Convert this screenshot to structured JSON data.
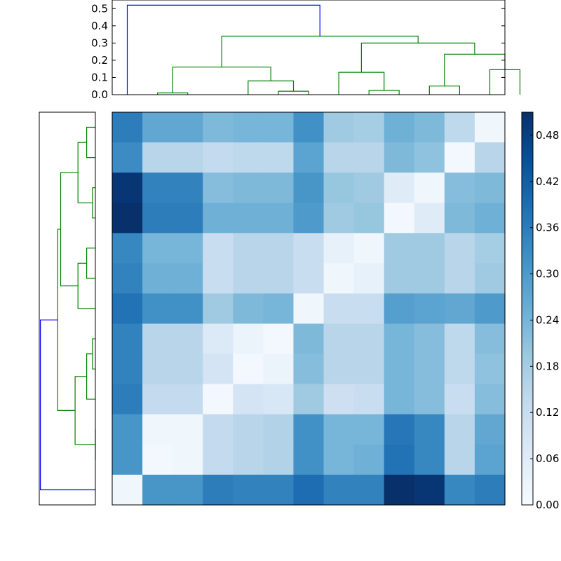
{
  "chart_data": [
    {
      "type": "dendrogram",
      "orientation": "top",
      "ylim": [
        0,
        0.55
      ],
      "yticks": [
        "0.0",
        "0.1",
        "0.2",
        "0.3",
        "0.4",
        "0.5"
      ],
      "colors": {
        "link": "#008000",
        "root": "#0000ff"
      },
      "links": [
        {
          "x": [
            1,
            2
          ],
          "left_h": 0.0,
          "right_h": 0.0,
          "h": 0.01
        },
        {
          "x": [
            5,
            6
          ],
          "left_h": 0.0,
          "right_h": 0.0,
          "h": 0.02
        },
        {
          "x": [
            4,
            5.5
          ],
          "left_h": 0.0,
          "right_h": 0.02,
          "h": 0.08
        },
        {
          "x": [
            1.5,
            4.75
          ],
          "left_h": 0.01,
          "right_h": 0.08,
          "h": 0.16
        },
        {
          "x": [
            8,
            9
          ],
          "left_h": 0.0,
          "right_h": 0.0,
          "h": 0.025
        },
        {
          "x": [
            7,
            8.5
          ],
          "left_h": 0.0,
          "right_h": 0.025,
          "h": 0.13
        },
        {
          "x": [
            10,
            11
          ],
          "left_h": 0.0,
          "right_h": 0.0,
          "h": 0.05
        },
        {
          "x": [
            12,
            13
          ],
          "left_h": 0.0,
          "right_h": 0.0,
          "h": 0.145
        },
        {
          "x": [
            10.5,
            12.5
          ],
          "left_h": 0.05,
          "right_h": 0.145,
          "h": 0.235
        },
        {
          "x": [
            7.75,
            11.5
          ],
          "left_h": 0.13,
          "right_h": 0.235,
          "h": 0.3
        },
        {
          "x": [
            3.125,
            9.625
          ],
          "left_h": 0.16,
          "right_h": 0.3,
          "h": 0.34
        },
        {
          "x": [
            0,
            6.375
          ],
          "left_h": 0.0,
          "right_h": 0.34,
          "h": 0.52,
          "root": true
        }
      ]
    },
    {
      "type": "dendrogram",
      "orientation": "left",
      "colors": {
        "link": "#008000",
        "root": "#0000ff"
      },
      "links": [
        {
          "y": [
            0,
            1
          ],
          "h": 0.03
        },
        {
          "y": [
            2,
            3
          ],
          "h": 0.01
        },
        {
          "y": [
            0.5,
            2.5
          ],
          "h": 0.06
        },
        {
          "y": [
            4,
            5
          ],
          "h": 0.03
        },
        {
          "y": [
            4.5,
            6
          ],
          "h": 0.06
        },
        {
          "y": [
            1.5,
            5.25
          ],
          "h": 0.12
        },
        {
          "y": [
            7,
            8
          ],
          "h": 0.01
        },
        {
          "y": [
            7.5,
            9
          ],
          "h": 0.03
        },
        {
          "y": [
            10,
            11
          ],
          "h": 0.0
        },
        {
          "y": [
            8.25,
            10.5
          ],
          "h": 0.07
        },
        {
          "y": [
            3.375,
            9.375
          ],
          "h": 0.13
        },
        {
          "y": [
            6.375,
            12
          ],
          "h": 0.19,
          "root": true
        }
      ]
    },
    {
      "type": "heatmap",
      "colormap": "Blues",
      "vmin": 0.0,
      "vmax": 0.51,
      "n_cols": 13,
      "n_rows": 13,
      "values": [
        [
          0.36,
          0.27,
          0.27,
          0.23,
          0.24,
          0.24,
          0.32,
          0.19,
          0.18,
          0.25,
          0.23,
          0.14,
          0.02
        ],
        [
          0.33,
          0.15,
          0.15,
          0.13,
          0.14,
          0.14,
          0.28,
          0.15,
          0.15,
          0.23,
          0.21,
          0.01,
          0.15
        ],
        [
          0.5,
          0.35,
          0.35,
          0.22,
          0.23,
          0.23,
          0.31,
          0.2,
          0.19,
          0.06,
          0.02,
          0.22,
          0.23
        ],
        [
          0.51,
          0.36,
          0.36,
          0.25,
          0.25,
          0.25,
          0.3,
          0.19,
          0.2,
          0.01,
          0.06,
          0.23,
          0.25
        ],
        [
          0.34,
          0.24,
          0.24,
          0.12,
          0.15,
          0.15,
          0.12,
          0.04,
          0.02,
          0.19,
          0.19,
          0.15,
          0.18
        ],
        [
          0.35,
          0.25,
          0.25,
          0.12,
          0.15,
          0.15,
          0.12,
          0.02,
          0.04,
          0.19,
          0.19,
          0.15,
          0.19
        ],
        [
          0.38,
          0.32,
          0.32,
          0.19,
          0.23,
          0.24,
          0.02,
          0.12,
          0.12,
          0.29,
          0.28,
          0.27,
          0.3
        ],
        [
          0.35,
          0.15,
          0.15,
          0.07,
          0.03,
          0.01,
          0.23,
          0.15,
          0.15,
          0.24,
          0.22,
          0.14,
          0.22
        ],
        [
          0.35,
          0.15,
          0.15,
          0.09,
          0.01,
          0.03,
          0.22,
          0.15,
          0.15,
          0.24,
          0.22,
          0.14,
          0.21
        ],
        [
          0.36,
          0.13,
          0.13,
          0.01,
          0.09,
          0.08,
          0.19,
          0.11,
          0.12,
          0.24,
          0.22,
          0.12,
          0.22
        ],
        [
          0.31,
          0.02,
          0.02,
          0.13,
          0.15,
          0.16,
          0.32,
          0.24,
          0.24,
          0.37,
          0.34,
          0.15,
          0.27
        ],
        [
          0.31,
          0.01,
          0.02,
          0.13,
          0.15,
          0.16,
          0.32,
          0.24,
          0.25,
          0.38,
          0.34,
          0.15,
          0.28
        ],
        [
          0.02,
          0.31,
          0.31,
          0.36,
          0.35,
          0.35,
          0.39,
          0.35,
          0.35,
          0.51,
          0.5,
          0.34,
          0.36
        ]
      ]
    },
    {
      "type": "colorbar",
      "colormap": "Blues",
      "vmin": 0.0,
      "vmax": 0.51,
      "ticks": [
        0.0,
        0.06,
        0.12,
        0.18,
        0.24,
        0.3,
        0.36,
        0.42,
        0.48
      ],
      "tick_labels": [
        "0.00",
        "0.06",
        "0.12",
        "0.18",
        "0.24",
        "0.30",
        "0.36",
        "0.42",
        "0.48"
      ]
    }
  ]
}
